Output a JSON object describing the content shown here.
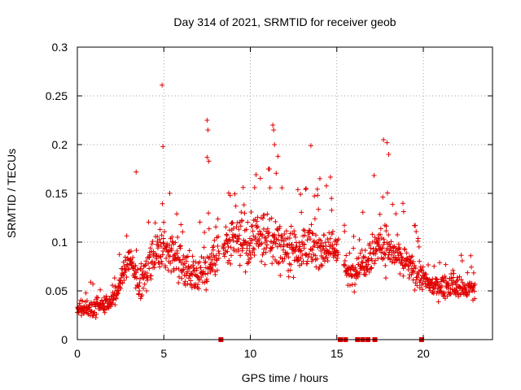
{
  "chart_data": {
    "type": "scatter",
    "title": "Day 314 of 2021, SRMTID for receiver geob",
    "xlabel": "GPS time / hours",
    "ylabel": "SRMTID / TECUs",
    "xlim": [
      0,
      24
    ],
    "ylim": [
      0,
      0.3
    ],
    "x_ticks": [
      0,
      5,
      10,
      15,
      20
    ],
    "x_tick_labels": [
      "0",
      "5",
      "10",
      "15",
      "20"
    ],
    "y_ticks": [
      0,
      0.05,
      0.1,
      0.15,
      0.2,
      0.25,
      0.3
    ],
    "y_tick_labels": [
      "0",
      "0.05",
      "0.1",
      "0.15",
      "0.2",
      "0.25",
      "0.3"
    ],
    "grid": true,
    "marker": "plus",
    "series_color": "#e00000",
    "scatter_density_hint": "dense cloud of ~1400 points following profile below",
    "profile": [
      {
        "hour": 0.0,
        "center": 0.03,
        "spread": 0.012
      },
      {
        "hour": 1.0,
        "center": 0.032,
        "spread": 0.015
      },
      {
        "hour": 2.0,
        "center": 0.04,
        "spread": 0.015
      },
      {
        "hour": 2.5,
        "center": 0.06,
        "spread": 0.018
      },
      {
        "hour": 3.0,
        "center": 0.085,
        "spread": 0.02
      },
      {
        "hour": 3.5,
        "center": 0.055,
        "spread": 0.025
      },
      {
        "hour": 4.0,
        "center": 0.07,
        "spread": 0.03
      },
      {
        "hour": 5.0,
        "center": 0.095,
        "spread": 0.035
      },
      {
        "hour": 6.0,
        "center": 0.08,
        "spread": 0.035
      },
      {
        "hour": 7.0,
        "center": 0.065,
        "spread": 0.03
      },
      {
        "hour": 8.0,
        "center": 0.085,
        "spread": 0.035
      },
      {
        "hour": 9.0,
        "center": 0.1,
        "spread": 0.04
      },
      {
        "hour": 10.0,
        "center": 0.1,
        "spread": 0.04
      },
      {
        "hour": 11.0,
        "center": 0.105,
        "spread": 0.045
      },
      {
        "hour": 12.0,
        "center": 0.095,
        "spread": 0.04
      },
      {
        "hour": 13.0,
        "center": 0.095,
        "spread": 0.04
      },
      {
        "hour": 14.0,
        "center": 0.095,
        "spread": 0.035
      },
      {
        "hour": 15.0,
        "center": 0.095,
        "spread": 0.03
      },
      {
        "hour": 15.7,
        "center": 0.065,
        "spread": 0.02
      },
      {
        "hour": 16.5,
        "center": 0.08,
        "spread": 0.03
      },
      {
        "hour": 17.5,
        "center": 0.1,
        "spread": 0.04
      },
      {
        "hour": 18.5,
        "center": 0.085,
        "spread": 0.03
      },
      {
        "hour": 19.5,
        "center": 0.07,
        "spread": 0.025
      },
      {
        "hour": 20.5,
        "center": 0.055,
        "spread": 0.015
      },
      {
        "hour": 21.5,
        "center": 0.055,
        "spread": 0.02
      },
      {
        "hour": 23.0,
        "center": 0.05,
        "spread": 0.02
      }
    ],
    "outliers": [
      {
        "x": 3.4,
        "y": 0.172
      },
      {
        "x": 4.9,
        "y": 0.261
      },
      {
        "x": 4.95,
        "y": 0.198
      },
      {
        "x": 7.5,
        "y": 0.225
      },
      {
        "x": 7.55,
        "y": 0.215
      },
      {
        "x": 7.5,
        "y": 0.187
      },
      {
        "x": 7.6,
        "y": 0.183
      },
      {
        "x": 11.3,
        "y": 0.22
      },
      {
        "x": 11.35,
        "y": 0.215
      },
      {
        "x": 11.4,
        "y": 0.2
      },
      {
        "x": 11.6,
        "y": 0.188
      },
      {
        "x": 13.5,
        "y": 0.199
      },
      {
        "x": 17.7,
        "y": 0.205
      },
      {
        "x": 17.9,
        "y": 0.202
      },
      {
        "x": 18.0,
        "y": 0.19
      }
    ],
    "gap_markers_x": [
      8.3,
      15.2,
      15.5,
      16.2,
      16.5,
      16.8,
      17.2,
      19.9
    ]
  }
}
